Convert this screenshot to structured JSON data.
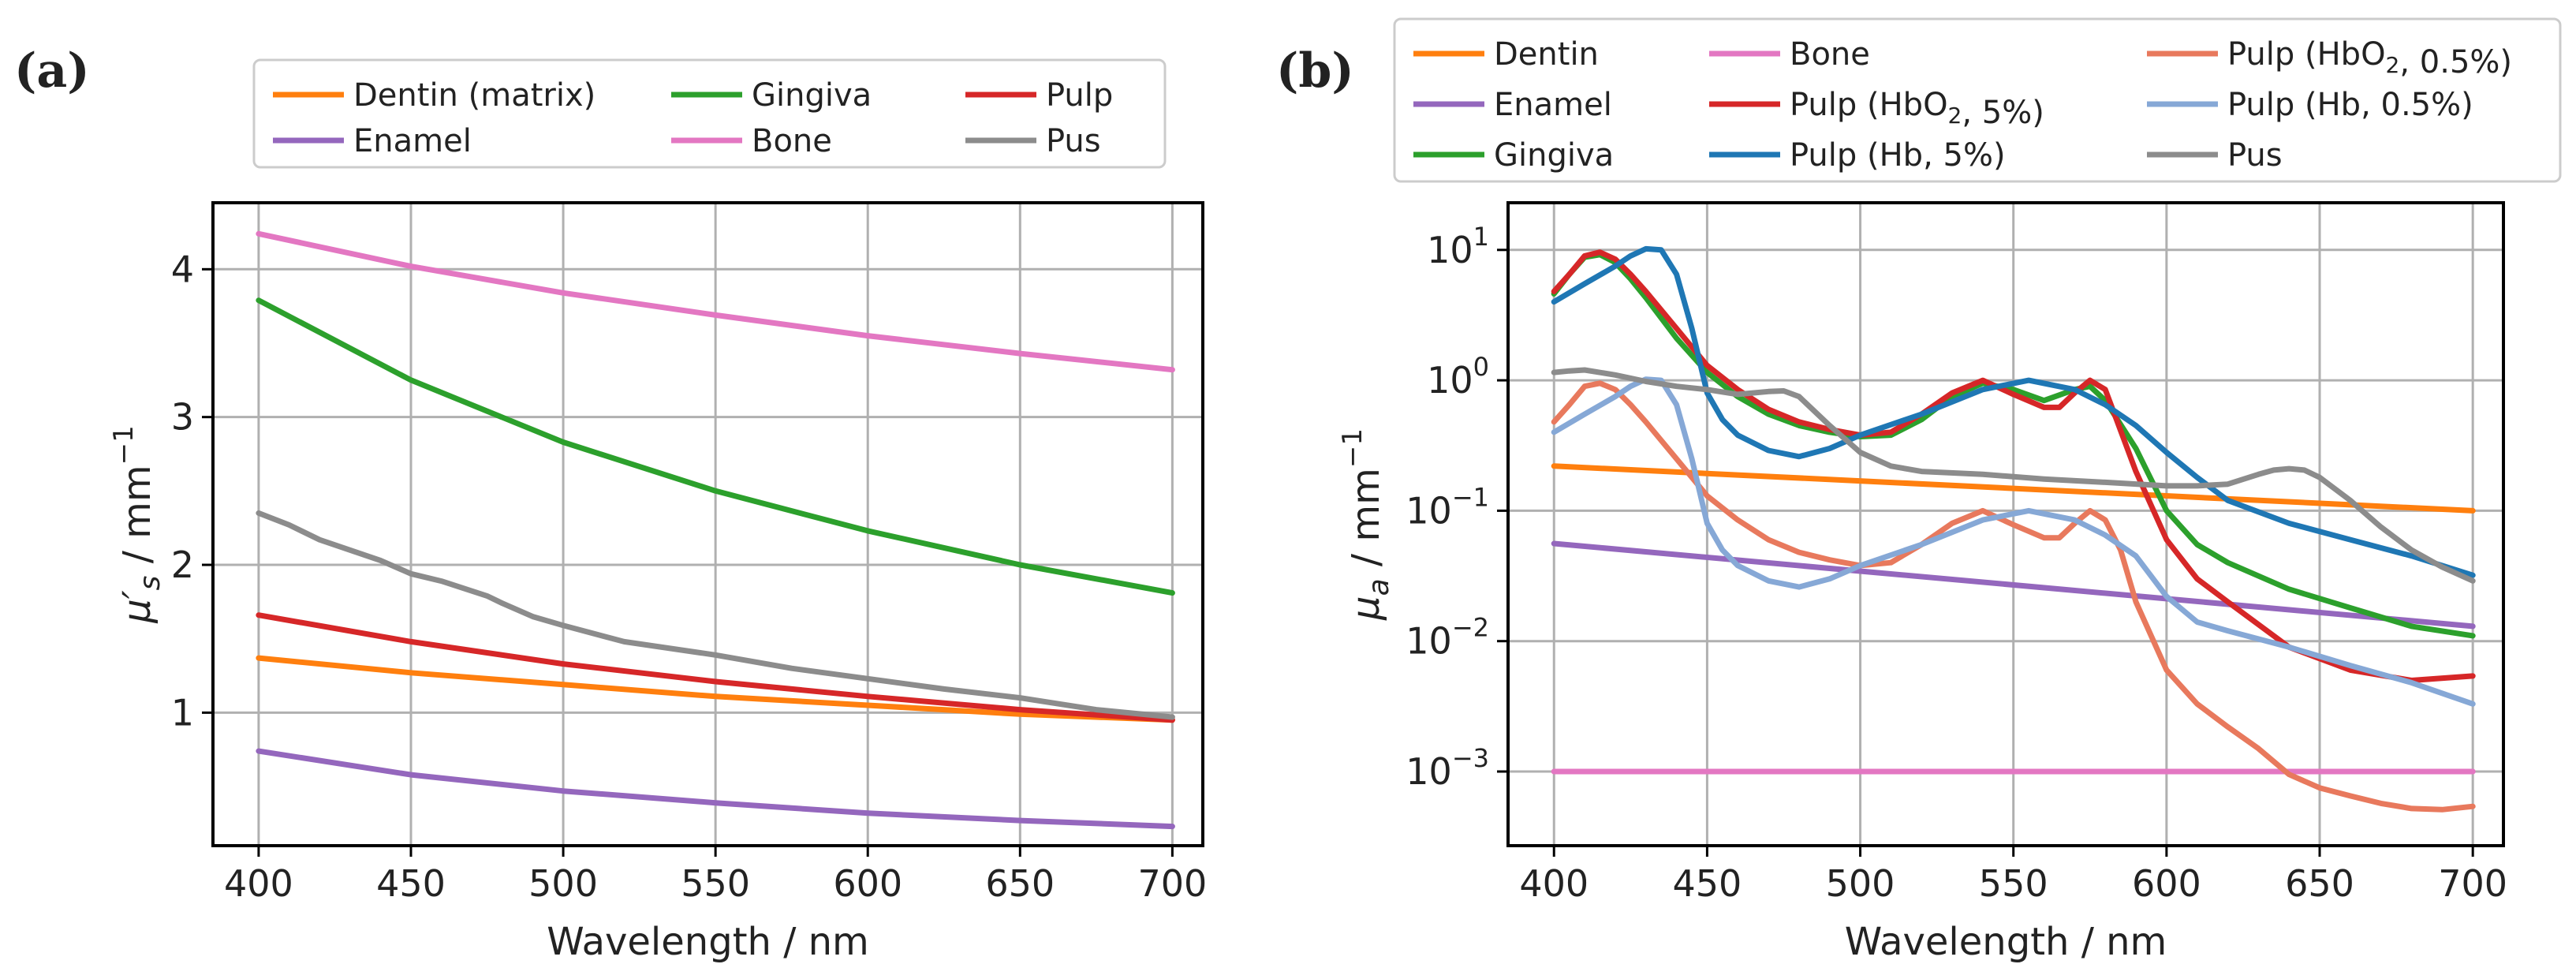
{
  "chart_data": [
    {
      "id": "a",
      "panel_label": "(a)",
      "type": "line",
      "xlabel": "Wavelength / nm",
      "ylabel": "μ′s / mm⁻¹",
      "ylabel_parts": {
        "mu": "μ",
        "prime": "′",
        "sub": "s",
        "unit": " / mm",
        "exp": "−1"
      },
      "xlim": [
        385,
        710
      ],
      "ylim": [
        0.1,
        4.45
      ],
      "yscale": "linear",
      "xticks": [
        400,
        450,
        500,
        550,
        600,
        650,
        700
      ],
      "xtick_labels": [
        "400",
        "450",
        "500",
        "550",
        "600",
        "650",
        "700"
      ],
      "yticks": [
        1,
        2,
        3,
        4
      ],
      "ytick_labels": [
        "1",
        "2",
        "3",
        "4"
      ],
      "grid": true,
      "legend_position": "top",
      "legend_columns": [
        [
          "Dentin (matrix)",
          "Enamel"
        ],
        [
          "Gingiva",
          "Bone"
        ],
        [
          "Pulp",
          "Pus"
        ]
      ],
      "series": [
        {
          "name": "Dentin (matrix)",
          "color": "#ff7f0e",
          "x": [
            400,
            450,
            500,
            550,
            600,
            650,
            700
          ],
          "y": [
            1.37,
            1.27,
            1.19,
            1.11,
            1.05,
            0.99,
            0.95
          ]
        },
        {
          "name": "Enamel",
          "color": "#9467bd",
          "x": [
            400,
            450,
            500,
            550,
            600,
            650,
            700
          ],
          "y": [
            0.74,
            0.58,
            0.47,
            0.39,
            0.32,
            0.27,
            0.23
          ]
        },
        {
          "name": "Gingiva",
          "color": "#2ca02c",
          "x": [
            400,
            450,
            500,
            550,
            600,
            650,
            700
          ],
          "y": [
            3.79,
            3.25,
            2.83,
            2.5,
            2.23,
            2.0,
            1.81
          ]
        },
        {
          "name": "Bone",
          "color": "#e377c2",
          "x": [
            400,
            450,
            500,
            550,
            600,
            650,
            700
          ],
          "y": [
            4.24,
            4.02,
            3.84,
            3.69,
            3.55,
            3.43,
            3.32
          ]
        },
        {
          "name": "Pulp",
          "color": "#d62728",
          "x": [
            400,
            450,
            500,
            550,
            600,
            650,
            700
          ],
          "y": [
            1.66,
            1.48,
            1.33,
            1.21,
            1.11,
            1.02,
            0.95
          ]
        },
        {
          "name": "Pus",
          "color": "#8c8c8c",
          "x": [
            400,
            410,
            420,
            440,
            450,
            460,
            475,
            480,
            490,
            500,
            520,
            550,
            575,
            600,
            625,
            650,
            675,
            700
          ],
          "y": [
            2.35,
            2.27,
            2.17,
            2.03,
            1.94,
            1.89,
            1.79,
            1.74,
            1.65,
            1.59,
            1.48,
            1.39,
            1.3,
            1.23,
            1.16,
            1.1,
            1.02,
            0.97
          ]
        }
      ]
    },
    {
      "id": "b",
      "panel_label": "(b)",
      "type": "line",
      "xlabel": "Wavelength / nm",
      "ylabel": "μa / mm⁻¹",
      "ylabel_parts": {
        "mu": "μ",
        "prime": "",
        "sub": "a",
        "unit": " / mm",
        "exp": "−1"
      },
      "xlim": [
        385,
        710
      ],
      "ylim": [
        0.00027,
        23
      ],
      "yscale": "log",
      "xticks": [
        400,
        450,
        500,
        550,
        600,
        650,
        700
      ],
      "xtick_labels": [
        "400",
        "450",
        "500",
        "550",
        "600",
        "650",
        "700"
      ],
      "yticks": [
        0.001,
        0.01,
        0.1,
        1,
        10
      ],
      "ytick_labels": [
        {
          "base": "10",
          "exp": "−3"
        },
        {
          "base": "10",
          "exp": "−2"
        },
        {
          "base": "10",
          "exp": "−1"
        },
        {
          "base": "10",
          "exp": "0"
        },
        {
          "base": "10",
          "exp": "1"
        }
      ],
      "grid": true,
      "legend_position": "top",
      "legend_columns": [
        [
          "Dentin",
          "Enamel",
          "Gingiva"
        ],
        [
          "Bone",
          "Pulp (HbO₂, 5%)",
          "Pulp (Hb, 5%)"
        ],
        [
          "Pulp (HbO₂, 0.5%)",
          "Pulp (Hb, 0.5%)",
          "Pus"
        ]
      ],
      "series": [
        {
          "name": "Dentin",
          "color": "#ff7f0e",
          "x": [
            400,
            700
          ],
          "y": [
            0.22,
            0.1
          ]
        },
        {
          "name": "Enamel",
          "color": "#9467bd",
          "x": [
            400,
            700
          ],
          "y": [
            0.056,
            0.013
          ]
        },
        {
          "name": "Gingiva",
          "color": "#2ca02c",
          "x": [
            400,
            405,
            410,
            415,
            420,
            425,
            430,
            440,
            450,
            460,
            470,
            480,
            490,
            500,
            510,
            520,
            530,
            540,
            550,
            560,
            570,
            575,
            580,
            590,
            600,
            610,
            620,
            640,
            660,
            680,
            700
          ],
          "y": [
            4.6,
            6.5,
            8.8,
            9.2,
            8.0,
            6.0,
            4.3,
            2.1,
            1.15,
            0.75,
            0.55,
            0.45,
            0.4,
            0.37,
            0.38,
            0.5,
            0.75,
            0.95,
            0.85,
            0.7,
            0.85,
            0.9,
            0.7,
            0.3,
            0.1,
            0.055,
            0.04,
            0.025,
            0.018,
            0.013,
            0.011
          ]
        },
        {
          "name": "Bone",
          "color": "#e377c2",
          "x": [
            400,
            700
          ],
          "y": [
            0.001,
            0.001
          ]
        },
        {
          "name": "Pulp (HbO₂, 5%)",
          "color": "#d62728",
          "x": [
            400,
            405,
            410,
            415,
            420,
            425,
            430,
            440,
            450,
            460,
            470,
            480,
            490,
            500,
            510,
            520,
            530,
            540,
            550,
            560,
            565,
            570,
            575,
            580,
            590,
            600,
            610,
            620,
            640,
            660,
            680,
            700
          ],
          "y": [
            4.8,
            6.5,
            9.0,
            9.6,
            8.5,
            6.5,
            4.8,
            2.5,
            1.3,
            0.85,
            0.6,
            0.48,
            0.42,
            0.38,
            0.4,
            0.55,
            0.8,
            1.0,
            0.78,
            0.62,
            0.62,
            0.8,
            1.0,
            0.85,
            0.2,
            0.06,
            0.03,
            0.02,
            0.009,
            0.006,
            0.005,
            0.0054
          ]
        },
        {
          "name": "Pulp (Hb, 5%)",
          "color": "#1f77b4",
          "x": [
            400,
            410,
            420,
            425,
            430,
            435,
            440,
            445,
            450,
            455,
            460,
            470,
            480,
            490,
            500,
            520,
            540,
            555,
            570,
            580,
            590,
            600,
            610,
            620,
            640,
            660,
            680,
            700
          ],
          "y": [
            4.0,
            5.5,
            7.5,
            9.0,
            10.2,
            10.0,
            6.5,
            2.5,
            0.8,
            0.5,
            0.38,
            0.29,
            0.26,
            0.3,
            0.38,
            0.55,
            0.85,
            1.0,
            0.85,
            0.65,
            0.45,
            0.28,
            0.18,
            0.12,
            0.08,
            0.06,
            0.045,
            0.032
          ]
        },
        {
          "name": "Pulp (HbO₂, 0.5%)",
          "color": "#e8795d",
          "x": [
            400,
            405,
            410,
            415,
            420,
            425,
            430,
            440,
            450,
            460,
            470,
            480,
            490,
            500,
            510,
            520,
            530,
            540,
            550,
            560,
            565,
            570,
            575,
            580,
            585,
            590,
            600,
            610,
            620,
            630,
            640,
            650,
            660,
            670,
            680,
            690,
            700
          ],
          "y": [
            0.48,
            0.65,
            0.9,
            0.95,
            0.85,
            0.65,
            0.48,
            0.25,
            0.13,
            0.085,
            0.06,
            0.048,
            0.042,
            0.038,
            0.04,
            0.055,
            0.08,
            0.1,
            0.078,
            0.062,
            0.062,
            0.08,
            0.1,
            0.085,
            0.05,
            0.02,
            0.006,
            0.0033,
            0.0022,
            0.0015,
            0.00095,
            0.00075,
            0.00065,
            0.00057,
            0.00052,
            0.00051,
            0.00054
          ]
        },
        {
          "name": "Pulp (Hb, 0.5%)",
          "color": "#86a8d6",
          "x": [
            400,
            410,
            420,
            425,
            430,
            435,
            440,
            445,
            450,
            455,
            460,
            470,
            480,
            490,
            500,
            520,
            540,
            555,
            570,
            580,
            590,
            600,
            610,
            620,
            640,
            660,
            680,
            700
          ],
          "y": [
            0.4,
            0.55,
            0.75,
            0.9,
            1.02,
            1.0,
            0.65,
            0.25,
            0.08,
            0.05,
            0.038,
            0.029,
            0.026,
            0.03,
            0.038,
            0.055,
            0.085,
            0.1,
            0.085,
            0.065,
            0.045,
            0.022,
            0.014,
            0.012,
            0.009,
            0.0065,
            0.0048,
            0.0033
          ]
        },
        {
          "name": "Pus",
          "color": "#8c8c8c",
          "x": [
            400,
            405,
            410,
            420,
            430,
            440,
            450,
            460,
            470,
            475,
            480,
            490,
            500,
            510,
            520,
            540,
            560,
            580,
            600,
            610,
            620,
            630,
            635,
            640,
            645,
            650,
            660,
            670,
            680,
            690,
            700
          ],
          "y": [
            1.15,
            1.18,
            1.2,
            1.1,
            0.98,
            0.9,
            0.85,
            0.78,
            0.82,
            0.83,
            0.75,
            0.45,
            0.28,
            0.22,
            0.2,
            0.19,
            0.175,
            0.165,
            0.155,
            0.155,
            0.16,
            0.19,
            0.205,
            0.21,
            0.205,
            0.18,
            0.12,
            0.075,
            0.05,
            0.037,
            0.029
          ]
        }
      ]
    }
  ]
}
